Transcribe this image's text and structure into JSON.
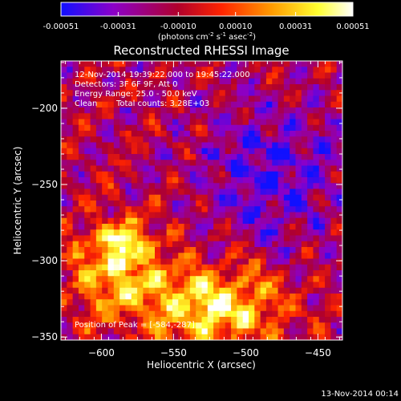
{
  "footer": {
    "timestamp": "13-Nov-2014 00:14"
  },
  "colorbar": {
    "tick_labels": [
      "-0.00051",
      "-0.00031",
      "-0.00010",
      "0.00010",
      "0.00031",
      "0.00051"
    ],
    "tick_values": [
      -0.00051,
      -0.00031,
      -0.0001,
      0.0001,
      0.00031,
      0.00051
    ],
    "range": [
      -0.00051,
      0.00051
    ],
    "unit_prefix": "(photons cm",
    "unit_exp1": "-2",
    "unit_mid": " s",
    "unit_exp2": "-1",
    "unit_mid2": " asec",
    "unit_exp3": "-2",
    "unit_suffix": ")",
    "colors": [
      "#1010ff",
      "#8c00c8",
      "#b0002c",
      "#ff2400",
      "#ff9a00",
      "#ffff30",
      "#ffffff"
    ]
  },
  "chart_data": {
    "type": "heatmap",
    "title": "Reconstructed RHESSI Image",
    "xlabel": "Heliocentric X (arcsec)",
    "ylabel": "Heliocentric Y (arcsec)",
    "xlim": [
      -628,
      -433
    ],
    "ylim": [
      -352,
      -169
    ],
    "x_ticks": [
      -600,
      -550,
      -500,
      -450
    ],
    "x_tick_labels": [
      "−600",
      "−550",
      "−500",
      "−450"
    ],
    "y_ticks": [
      -350,
      -300,
      -250,
      -200
    ],
    "y_tick_labels": [
      "−350",
      "−300",
      "−250",
      "−200"
    ],
    "annotations": {
      "time": "12-Nov-2014 19:39:22.000 to 19:45:22.000",
      "detectors": "Detectors: 3F 6F 9F, Att 0",
      "energy": "Energy Range: 25.0 - 50.0 keV",
      "method": "Clean",
      "counts": "Total counts: 3.28E+03",
      "peak": "Position of Peak = [-584,-287]"
    },
    "peak": [
      -584,
      -287
    ],
    "grid": false
  }
}
